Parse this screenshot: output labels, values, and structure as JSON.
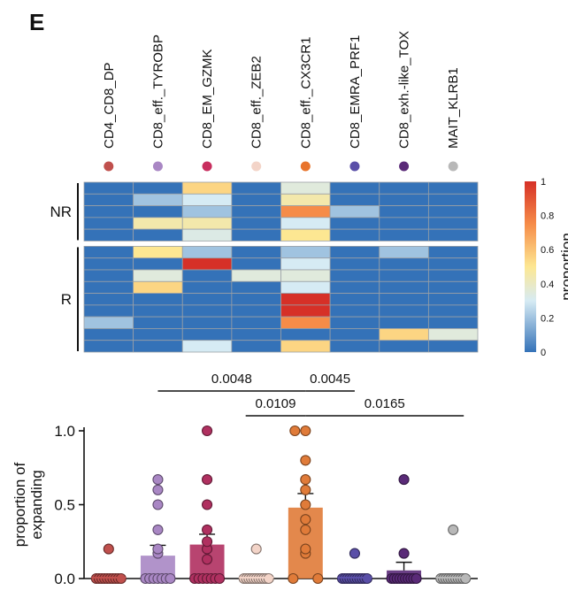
{
  "panel_label": "E",
  "chart_data": [
    {
      "type": "heatmap",
      "columns": [
        "CD4_CD8_DP",
        "CD8_eff._TYROBP",
        "CD8_EM_GZMK",
        "CD8_eff._ZEB2",
        "CD8_eff._CX3CR1",
        "CD8_EMRA_PRF1",
        "CD8_exh.-like_TOX",
        "MAIT_KLRB1"
      ],
      "column_colors": [
        "#c0504d",
        "#a987c4",
        "#c82e5e",
        "#f3d4c8",
        "#e8742c",
        "#5a4fa8",
        "#5a2a78",
        "#b8b8b8"
      ],
      "groups": [
        {
          "name": "NR",
          "rows": [
            [
              0,
              0,
              0.55,
              0,
              0.35,
              0,
              0,
              0
            ],
            [
              0,
              0.2,
              0.3,
              0,
              0.45,
              0,
              0,
              0
            ],
            [
              0,
              0,
              0.2,
              0,
              0.75,
              0.2,
              0,
              0
            ],
            [
              0,
              0.45,
              0.45,
              0,
              0.3,
              0,
              0,
              0
            ],
            [
              0,
              0,
              0.33,
              0,
              0.5,
              0,
              0,
              0
            ]
          ]
        },
        {
          "name": "R",
          "rows": [
            [
              0,
              0.5,
              0.2,
              0,
              0.2,
              0,
              0.2,
              0
            ],
            [
              0,
              0,
              1.0,
              0,
              0.3,
              0,
              0,
              0
            ],
            [
              0,
              0.35,
              0,
              0.35,
              0.35,
              0,
              0,
              0
            ],
            [
              0,
              0.55,
              0,
              0,
              0.3,
              0,
              0,
              0
            ],
            [
              0,
              0,
              0,
              0,
              1.0,
              0,
              0,
              0
            ],
            [
              0,
              0,
              0,
              0,
              1.0,
              0,
              0,
              0
            ],
            [
              0.2,
              0,
              0,
              0,
              0.75,
              0,
              0,
              0
            ],
            [
              0,
              0,
              0,
              0,
              0,
              0,
              0.55,
              0.35
            ],
            [
              0,
              0,
              0.3,
              0,
              0.55,
              0,
              0,
              0
            ]
          ]
        }
      ],
      "colorbar": {
        "label": "proportion",
        "ticks": [
          "1",
          "0.8",
          "0.6",
          "0.4",
          "0.2",
          "0"
        ],
        "range": [
          0,
          1
        ]
      }
    },
    {
      "type": "bar",
      "categories": [
        "CD4_CD8_DP",
        "CD8_eff._TYROBP",
        "CD8_EM_GZMK",
        "CD8_eff._ZEB2",
        "CD8_eff._CX3CR1",
        "CD8_EMRA_PRF1",
        "CD8_exh.-like_TOX",
        "MAIT_KLRB1"
      ],
      "bar_colors": [
        "#c0504d",
        "#a987c4",
        "#b03060",
        "#f3d4c8",
        "#e07b39",
        "#5a4fa8",
        "#5a2a78",
        "#b8b8b8"
      ],
      "values": [
        0.0,
        0.155,
        0.23,
        0.0,
        0.48,
        0.0,
        0.055,
        0.0
      ],
      "errors": [
        0.0,
        0.07,
        0.07,
        0.03,
        0.095,
        0.0,
        0.055,
        0.03
      ],
      "points": [
        [
          0,
          0,
          0,
          0,
          0,
          0,
          0,
          0,
          0,
          0,
          0.2
        ],
        [
          0,
          0,
          0,
          0,
          0,
          0,
          0,
          0.17,
          0.2,
          0.33,
          0.5,
          0.6,
          0.67
        ],
        [
          0,
          0,
          0,
          0,
          0,
          0,
          0,
          0.13,
          0.2,
          0.25,
          0.33,
          0.5,
          0.67,
          1.0
        ],
        [
          0,
          0,
          0,
          0,
          0,
          0,
          0,
          0,
          0,
          0,
          0,
          0.2
        ],
        [
          0,
          0,
          0.17,
          0.2,
          0.33,
          0.4,
          0.5,
          0.6,
          0.67,
          0.8,
          1.0,
          1.0
        ],
        [
          0,
          0,
          0,
          0,
          0,
          0,
          0,
          0,
          0,
          0,
          0,
          0.17
        ],
        [
          0,
          0,
          0,
          0,
          0,
          0,
          0,
          0,
          0,
          0,
          0.17,
          0.67
        ],
        [
          0,
          0,
          0,
          0,
          0,
          0,
          0,
          0,
          0,
          0,
          0,
          0.33
        ]
      ],
      "ylabel": "proportion of\nexpanding",
      "ylabel_lines": [
        "proportion of",
        "expanding"
      ],
      "yticks": [
        "0.0",
        "0.5",
        "1.0"
      ],
      "ylim": [
        0,
        1.0
      ],
      "significance": [
        {
          "from": 1,
          "to": 4,
          "label": "0.0048"
        },
        {
          "from": 4,
          "to": 5,
          "label": "0.0045"
        },
        {
          "from": 3,
          "to": 4,
          "label": "0.0109"
        },
        {
          "from": 4,
          "to": 7,
          "label": "0.0165"
        }
      ]
    }
  ]
}
